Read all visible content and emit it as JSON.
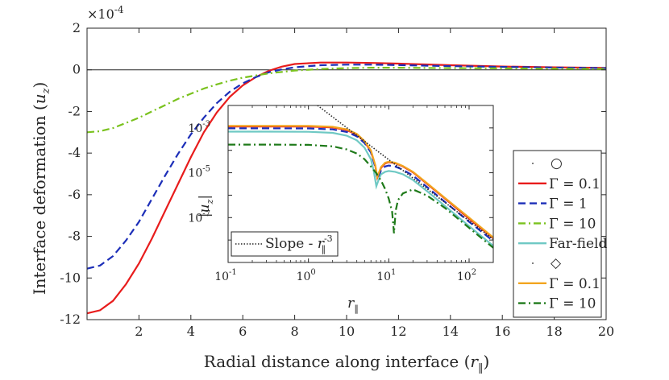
{
  "chart_data": [
    {
      "type": "line",
      "title": "",
      "xlabel_text": "Radial distance along interface (",
      "xlabel_sym": "r",
      "xlabel_sub": "‖",
      "xlabel_close": ")",
      "ylabel_text": "Interface deformation (",
      "ylabel_sym": "u",
      "ylabel_sub": "z",
      "ylabel_close": ")",
      "exponent_label": "×10",
      "exponent_power": "-4",
      "xlim": [
        0,
        20
      ],
      "ylim": [
        -12,
        2
      ],
      "xticks": [
        2,
        4,
        6,
        8,
        10,
        12,
        14,
        16,
        18,
        20
      ],
      "xtick_labels": [
        "2",
        "4",
        "6",
        "8",
        "10",
        "12",
        "14",
        "16",
        "18",
        "20"
      ],
      "yticks": [
        -12,
        -10,
        -8,
        -6,
        -4,
        -2,
        0,
        2
      ],
      "ytick_labels": [
        "-12",
        "-10",
        "-8",
        "-6",
        "-4",
        "-2",
        "0",
        "2"
      ],
      "series": [
        {
          "name": "Γ = 0.1",
          "marker_group": "○",
          "color": "#e81c1c",
          "dash": "solid",
          "x": [
            0,
            0.5,
            1,
            1.5,
            2,
            2.5,
            3,
            3.5,
            4,
            4.5,
            5,
            5.5,
            6,
            6.5,
            7,
            7.5,
            8,
            9,
            10,
            11,
            12,
            13,
            14,
            16,
            18,
            20
          ],
          "y": [
            -11.7,
            -11.55,
            -11.1,
            -10.3,
            -9.3,
            -8.1,
            -6.8,
            -5.5,
            -4.2,
            -3.0,
            -2.05,
            -1.3,
            -0.75,
            -0.35,
            -0.05,
            0.15,
            0.28,
            0.35,
            0.35,
            0.33,
            0.3,
            0.26,
            0.22,
            0.16,
            0.12,
            0.09
          ]
        },
        {
          "name": "Γ = 1",
          "marker_group": "○",
          "color": "#1c2eb8",
          "dash": "dashed",
          "x": [
            0,
            0.5,
            1,
            1.5,
            2,
            2.5,
            3,
            3.5,
            4,
            4.5,
            5,
            5.5,
            6,
            6.5,
            7,
            7.5,
            8,
            9,
            10,
            11,
            12,
            13,
            14,
            16,
            18,
            20
          ],
          "y": [
            -9.55,
            -9.4,
            -8.95,
            -8.2,
            -7.3,
            -6.2,
            -5.1,
            -4.05,
            -3.1,
            -2.3,
            -1.6,
            -1.05,
            -0.65,
            -0.35,
            -0.12,
            0.02,
            0.12,
            0.22,
            0.25,
            0.25,
            0.23,
            0.2,
            0.18,
            0.14,
            0.11,
            0.08
          ]
        },
        {
          "name": "Γ = 10",
          "marker_group": "○",
          "color": "#7ac21e",
          "dash": "dashdot",
          "x": [
            0,
            0.5,
            1,
            1.5,
            2,
            2.5,
            3,
            3.5,
            4,
            4.5,
            5,
            5.5,
            6,
            7,
            8,
            9,
            10,
            11,
            12,
            13,
            14,
            16,
            18,
            20
          ],
          "y": [
            -3.0,
            -2.95,
            -2.8,
            -2.55,
            -2.3,
            -2.0,
            -1.7,
            -1.4,
            -1.15,
            -0.9,
            -0.7,
            -0.52,
            -0.38,
            -0.17,
            -0.04,
            0.04,
            0.08,
            0.1,
            0.1,
            0.09,
            0.08,
            0.07,
            0.05,
            0.04
          ]
        }
      ],
      "legend_entries": [
        {
          "label": "○",
          "kind": "marker-header",
          "color": "#262626"
        },
        {
          "label": "Γ = 0.1",
          "kind": "solid",
          "color": "#e81c1c"
        },
        {
          "label": "Γ = 1",
          "kind": "dashed",
          "color": "#1c2eb8"
        },
        {
          "label": "Γ = 10",
          "kind": "dashdot",
          "color": "#7ac21e"
        },
        {
          "label": "Far-field",
          "kind": "solid",
          "color": "#6fc9c4"
        },
        {
          "label": "◇",
          "kind": "marker-header",
          "color": "#262626"
        },
        {
          "label": "Γ = 0.1",
          "kind": "solid",
          "color": "#f2a51f"
        },
        {
          "label": "Γ = 10",
          "kind": "dashdot",
          "color": "#1f7a1a"
        }
      ],
      "legend_position": "right"
    },
    {
      "type": "line",
      "scale": "log-log",
      "title": "",
      "xlabel_sym": "r",
      "xlabel_sub": "‖",
      "ylabel_sym": "|u",
      "ylabel_sub": "z",
      "ylabel_close": "|",
      "xlim": [
        0.1,
        200
      ],
      "ylim": [
        1e-09,
        0.01
      ],
      "xtick_base": [
        "10",
        "10",
        "10",
        "10"
      ],
      "xtick_exponents": [
        "-1",
        "0",
        "1",
        "2"
      ],
      "ytick_base": [
        "10",
        "10",
        "10",
        "10"
      ],
      "ytick_exponents": [
        "-3",
        "-5",
        "-7",
        ""
      ],
      "inset_legend": {
        "prefix": "Slope - ",
        "sym": "r",
        "sub": "‖",
        "exp": "-3",
        "position": "bottom-left"
      },
      "series": [
        {
          "name": "Γ = 0.1 (○)",
          "color": "#e81c1c",
          "dash": "solid",
          "x": [
            0.1,
            0.3,
            1,
            2,
            3,
            4,
            5,
            6,
            6.8,
            7.2,
            7.6,
            8,
            9,
            10,
            12,
            15,
            20,
            30,
            50,
            100,
            200
          ],
          "y": [
            0.00116,
            0.00116,
            0.00115,
            0.00105,
            0.0008,
            0.0005,
            0.00024,
            9e-05,
            2e-05,
            6e-06,
            9.5e-06,
            1.65e-05,
            2.6e-05,
            2.95e-05,
            2.7e-05,
            1.9e-05,
            1.05e-05,
            3.2e-06,
            7e-07,
            9e-08,
            1.2e-08
          ]
        },
        {
          "name": "Γ = 1",
          "color": "#1c2eb8",
          "dash": "dashed",
          "x": [
            0.1,
            0.3,
            1,
            2,
            3,
            4,
            5,
            6,
            6.8,
            7.2,
            7.6,
            8,
            9,
            10,
            12,
            15,
            20,
            30,
            50,
            100,
            200
          ],
          "y": [
            0.00096,
            0.00096,
            0.00095,
            0.00086,
            0.00066,
            0.00042,
            0.00021,
            8e-05,
            1.8e-05,
            5.5e-06,
            7.5e-06,
            1.3e-05,
            1.9e-05,
            2.1e-05,
            1.9e-05,
            1.35e-05,
            7.5e-06,
            2.3e-06,
            5e-07,
            6.5e-08,
            9e-09
          ]
        },
        {
          "name": "Far-field",
          "color": "#6fc9c4",
          "dash": "solid",
          "x": [
            0.1,
            0.3,
            1,
            2,
            3,
            4,
            5,
            6,
            6.5,
            7,
            7.5,
            8,
            9,
            10,
            12,
            15,
            20,
            30,
            50,
            100,
            200
          ],
          "y": [
            0.00068,
            0.00068,
            0.00067,
            0.0006,
            0.00045,
            0.00028,
            0.00013,
            4e-05,
            1.2e-05,
            2.5e-06,
            5e-06,
            8.5e-06,
            1.1e-05,
            1.2e-05,
            1.1e-05,
            8.5e-06,
            4.8e-06,
            1.5e-06,
            3.3e-07,
            4.2e-08,
            5.5e-09
          ]
        },
        {
          "name": "Γ = 0.1 (◇)",
          "color": "#f2a51f",
          "dash": "solid",
          "x": [
            0.1,
            0.3,
            1,
            2,
            3,
            4,
            5,
            6,
            6.8,
            7.2,
            7.6,
            8,
            9,
            10,
            12,
            15,
            20,
            30,
            50,
            100,
            200
          ],
          "y": [
            0.00124,
            0.00124,
            0.00123,
            0.00112,
            0.00086,
            0.00054,
            0.00026,
            0.0001,
            2.2e-05,
            6.5e-06,
            1.1e-05,
            1.8e-05,
            2.8e-05,
            3.1e-05,
            2.8e-05,
            2e-05,
            1.1e-05,
            3.4e-06,
            7.5e-07,
            1e-07,
            1.3e-08
          ]
        },
        {
          "name": "Γ = 10 (◇)",
          "color": "#1f7a1a",
          "dash": "dashdot",
          "x": [
            0.1,
            0.3,
            1,
            2,
            3,
            4,
            5,
            6,
            7,
            8,
            9,
            10,
            11,
            11.6,
            12.2,
            13,
            15,
            20,
            30,
            50,
            100,
            200
          ],
          "y": [
            0.00018,
            0.00018,
            0.000175,
            0.00015,
            0.00011,
            7.2e-05,
            4e-05,
            1.9e-05,
            9.5e-06,
            4.5e-06,
            1.9e-06,
            7e-07,
            1.8e-07,
            2e-08,
            2e-07,
            6e-07,
            1.2e-06,
            1.8e-06,
            9.5e-07,
            2.7e-07,
            3.5e-08,
            4.5e-09
          ]
        },
        {
          "name": "Slope - r‖^-3",
          "color": "#262626",
          "dash": "dotted",
          "x": [
            1.3,
            200
          ],
          "y": [
            0.04,
            1.08e-08
          ]
        }
      ]
    }
  ]
}
